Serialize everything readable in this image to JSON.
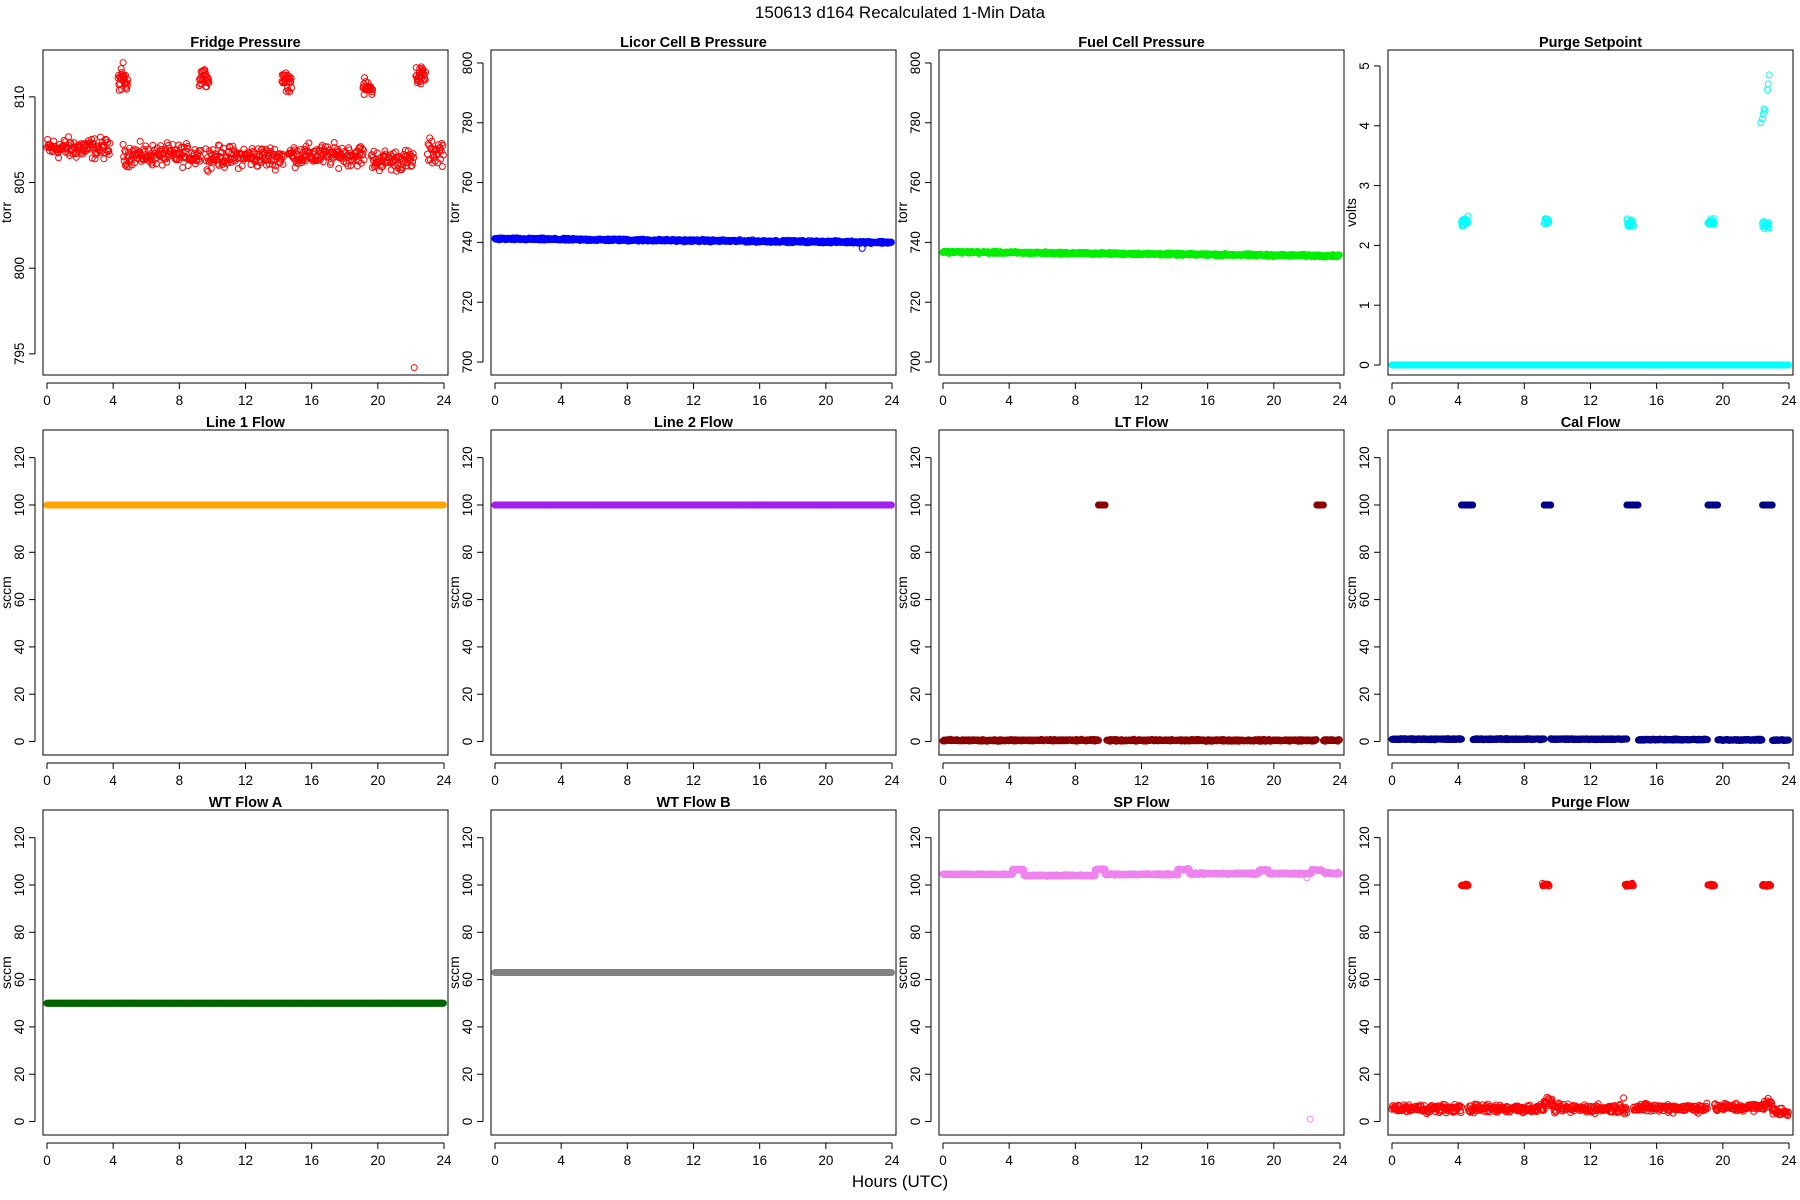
{
  "header": {
    "title": "150613   d164   Recalculated 1-Min Data",
    "xlabel": "Hours (UTC)"
  },
  "chart_data": [
    {
      "type": "scatter",
      "title": "Fridge Pressure",
      "ylabel": "torr",
      "color": "#ff0000",
      "xlim": [
        0,
        24
      ],
      "ylim": [
        794,
        812.5
      ],
      "xticks": [
        0,
        4,
        8,
        12,
        16,
        20,
        24
      ],
      "yticks": [
        795,
        800,
        805,
        810
      ],
      "segments": [
        {
          "x": [
            0,
            3.8
          ],
          "y": 807.0,
          "spread": 0.5
        },
        {
          "x": [
            4.6,
            9.3
          ],
          "y": 806.6,
          "spread": 0.5
        },
        {
          "x": [
            9.6,
            14.3
          ],
          "y": 806.5,
          "spread": 0.5
        },
        {
          "x": [
            14.6,
            19.2
          ],
          "y": 806.6,
          "spread": 0.5
        },
        {
          "x": [
            19.6,
            22.2
          ],
          "y": 806.3,
          "spread": 0.5
        },
        {
          "x": [
            23.0,
            24
          ],
          "y": 806.8,
          "spread": 0.6
        }
      ],
      "clusters": [
        {
          "x": [
            4.3,
            4.9
          ],
          "y": 811.0,
          "spread": 0.5
        },
        {
          "x": [
            9.2,
            9.8
          ],
          "y": 811.1,
          "spread": 0.5
        },
        {
          "x": [
            14.2,
            14.8
          ],
          "y": 810.9,
          "spread": 0.4
        },
        {
          "x": [
            19.1,
            19.7
          ],
          "y": 810.5,
          "spread": 0.4
        },
        {
          "x": [
            22.3,
            22.9
          ],
          "y": 811.2,
          "spread": 0.5
        }
      ],
      "outliers": [
        {
          "x": 22.2,
          "y": 794.2
        },
        {
          "x": 4.6,
          "y": 812.0
        }
      ]
    },
    {
      "type": "scatter",
      "title": "Licor Cell B Pressure",
      "ylabel": "torr",
      "color": "#0000ff",
      "xlim": [
        0,
        24
      ],
      "ylim": [
        697,
        803
      ],
      "xticks": [
        0,
        4,
        8,
        12,
        16,
        20,
        24
      ],
      "yticks": [
        700,
        720,
        740,
        760,
        780,
        800
      ],
      "segments": [
        {
          "x": [
            0,
            24
          ],
          "y": [
            741.2,
            740.0
          ],
          "spread": 0.3
        }
      ],
      "clusters": [],
      "outliers": [
        {
          "x": 22.2,
          "y": 738.0
        }
      ]
    },
    {
      "type": "scatter",
      "title": "Fuel Cell Pressure",
      "ylabel": "torr",
      "color": "#00ee00",
      "xlim": [
        0,
        24
      ],
      "ylim": [
        697,
        803
      ],
      "xticks": [
        0,
        4,
        8,
        12,
        16,
        20,
        24
      ],
      "yticks": [
        700,
        720,
        740,
        760,
        780,
        800
      ],
      "segments": [
        {
          "x": [
            0,
            24
          ],
          "y": [
            736.8,
            735.5
          ],
          "spread": 0.3
        }
      ],
      "clusters": [],
      "outliers": []
    },
    {
      "type": "scatter",
      "title": "Purge Setpoint",
      "ylabel": "volts",
      "color": "#00ffff",
      "xlim": [
        0,
        24
      ],
      "ylim": [
        -0.1,
        5.2
      ],
      "xticks": [
        0,
        4,
        8,
        12,
        16,
        20,
        24
      ],
      "yticks": [
        0,
        1,
        2,
        3,
        4,
        5
      ],
      "segments": [
        {
          "x": [
            0,
            24
          ],
          "y": 0,
          "spread": 0
        }
      ],
      "clusters": [
        {
          "x": [
            4.2,
            4.6
          ],
          "y": 2.4,
          "spread": 0.06
        },
        {
          "x": [
            9.2,
            9.5
          ],
          "y": 2.4,
          "spread": 0.05
        },
        {
          "x": [
            14.2,
            14.6
          ],
          "y": 2.38,
          "spread": 0.06
        },
        {
          "x": [
            19.1,
            19.5
          ],
          "y": 2.4,
          "spread": 0.05
        },
        {
          "x": [
            22.4,
            22.8
          ],
          "y": 2.35,
          "spread": 0.06
        }
      ],
      "outliers": [
        {
          "x": 22.3,
          "y": 4.05
        },
        {
          "x": 22.4,
          "y": 4.12
        },
        {
          "x": 22.45,
          "y": 4.2
        },
        {
          "x": 22.5,
          "y": 4.28
        },
        {
          "x": 22.55,
          "y": 4.25
        },
        {
          "x": 22.7,
          "y": 4.6
        },
        {
          "x": 22.75,
          "y": 4.7
        },
        {
          "x": 22.8,
          "y": 4.85
        }
      ]
    },
    {
      "type": "scatter",
      "title": "Line 1 Flow",
      "ylabel": "sccm",
      "color": "#ffa500",
      "xlim": [
        0,
        24
      ],
      "ylim": [
        -4,
        130
      ],
      "xticks": [
        0,
        4,
        8,
        12,
        16,
        20,
        24
      ],
      "yticks": [
        0,
        20,
        40,
        60,
        80,
        100,
        120
      ],
      "segments": [
        {
          "x": [
            0,
            24
          ],
          "y": 100,
          "spread": 0
        }
      ],
      "clusters": [],
      "outliers": []
    },
    {
      "type": "scatter",
      "title": "Line 2 Flow",
      "ylabel": "sccm",
      "color": "#a020f0",
      "xlim": [
        0,
        24
      ],
      "ylim": [
        -4,
        130
      ],
      "xticks": [
        0,
        4,
        8,
        12,
        16,
        20,
        24
      ],
      "yticks": [
        0,
        20,
        40,
        60,
        80,
        100,
        120
      ],
      "segments": [
        {
          "x": [
            0,
            24
          ],
          "y": 100,
          "spread": 0
        }
      ],
      "clusters": [],
      "outliers": []
    },
    {
      "type": "scatter",
      "title": "LT Flow",
      "ylabel": "sccm",
      "color": "#8b0000",
      "xlim": [
        0,
        24
      ],
      "ylim": [
        -4,
        130
      ],
      "xticks": [
        0,
        4,
        8,
        12,
        16,
        20,
        24
      ],
      "yticks": [
        0,
        20,
        40,
        60,
        80,
        100,
        120
      ],
      "segments": [
        {
          "x": [
            0,
            9.4
          ],
          "y": 0.5,
          "spread": 0.3
        },
        {
          "x": [
            9.9,
            22.6
          ],
          "y": 0.5,
          "spread": 0.3
        },
        {
          "x": [
            23.0,
            24
          ],
          "y": 0.5,
          "spread": 0.3
        }
      ],
      "clusters": [
        {
          "x": [
            9.4,
            9.8
          ],
          "y": 100,
          "spread": 0
        },
        {
          "x": [
            22.6,
            23.0
          ],
          "y": 100,
          "spread": 0
        }
      ],
      "outliers": []
    },
    {
      "type": "scatter",
      "title": "Cal Flow",
      "ylabel": "sccm",
      "color": "#00008b",
      "xlim": [
        0,
        24
      ],
      "ylim": [
        -4,
        130
      ],
      "xticks": [
        0,
        4,
        8,
        12,
        16,
        20,
        24
      ],
      "yticks": [
        0,
        20,
        40,
        60,
        80,
        100,
        120
      ],
      "segments": [
        {
          "x": [
            0,
            4.2
          ],
          "y": 1.0,
          "spread": 0.2
        },
        {
          "x": [
            4.9,
            9.2
          ],
          "y": 1.0,
          "spread": 0.2
        },
        {
          "x": [
            9.6,
            14.2
          ],
          "y": 1.0,
          "spread": 0.2
        },
        {
          "x": [
            14.9,
            19.1
          ],
          "y": 0.8,
          "spread": 0.2
        },
        {
          "x": [
            19.7,
            22.4
          ],
          "y": 0.7,
          "spread": 0.2
        },
        {
          "x": [
            23.0,
            24
          ],
          "y": 0.6,
          "spread": 0.2
        }
      ],
      "clusters": [
        {
          "x": [
            4.2,
            4.9
          ],
          "y": 100,
          "spread": 0
        },
        {
          "x": [
            9.2,
            9.6
          ],
          "y": 100,
          "spread": 0
        },
        {
          "x": [
            14.2,
            14.9
          ],
          "y": 100,
          "spread": 0
        },
        {
          "x": [
            19.1,
            19.7
          ],
          "y": 100,
          "spread": 0
        },
        {
          "x": [
            22.4,
            23.0
          ],
          "y": 100,
          "spread": 0
        }
      ],
      "outliers": []
    },
    {
      "type": "scatter",
      "title": "WT Flow A",
      "ylabel": "sccm",
      "color": "#006400",
      "xlim": [
        0,
        24
      ],
      "ylim": [
        -4,
        130
      ],
      "xticks": [
        0,
        4,
        8,
        12,
        16,
        20,
        24
      ],
      "yticks": [
        0,
        20,
        40,
        60,
        80,
        100,
        120
      ],
      "segments": [
        {
          "x": [
            0,
            24
          ],
          "y": 50,
          "spread": 0
        }
      ],
      "clusters": [],
      "outliers": []
    },
    {
      "type": "scatter",
      "title": "WT Flow B",
      "ylabel": "sccm",
      "color": "#808080",
      "xlim": [
        0,
        24
      ],
      "ylim": [
        -4,
        130
      ],
      "xticks": [
        0,
        4,
        8,
        12,
        16,
        20,
        24
      ],
      "yticks": [
        0,
        20,
        40,
        60,
        80,
        100,
        120
      ],
      "segments": [
        {
          "x": [
            0,
            24
          ],
          "y": 63,
          "spread": 0
        }
      ],
      "clusters": [],
      "outliers": []
    },
    {
      "type": "scatter",
      "title": "SP Flow",
      "ylabel": "sccm",
      "color": "#ee82ee",
      "xlim": [
        0,
        24
      ],
      "ylim": [
        -4,
        130
      ],
      "xticks": [
        0,
        4,
        8,
        12,
        16,
        20,
        24
      ],
      "yticks": [
        0,
        20,
        40,
        60,
        80,
        100,
        120
      ],
      "segments": [
        {
          "x": [
            0,
            4.2
          ],
          "y": 104.5,
          "spread": 0.2
        },
        {
          "x": [
            4.2,
            4.9
          ],
          "y": 106.5,
          "spread": 0.3
        },
        {
          "x": [
            4.9,
            9.2
          ],
          "y": 104.0,
          "spread": 0.3
        },
        {
          "x": [
            9.2,
            9.8
          ],
          "y": 106.5,
          "spread": 0.3
        },
        {
          "x": [
            9.8,
            14.2
          ],
          "y": 104.5,
          "spread": 0.3
        },
        {
          "x": [
            14.2,
            14.9
          ],
          "y": 106.5,
          "spread": 0.3
        },
        {
          "x": [
            14.9,
            19.1
          ],
          "y": 104.8,
          "spread": 0.3
        },
        {
          "x": [
            19.1,
            19.7
          ],
          "y": 106.2,
          "spread": 0.3
        },
        {
          "x": [
            19.7,
            22.3
          ],
          "y": 104.8,
          "spread": 0.3
        },
        {
          "x": [
            22.3,
            23.0
          ],
          "y": 106.3,
          "spread": 0.3
        },
        {
          "x": [
            23.0,
            24
          ],
          "y": 105.0,
          "spread": 0.3
        }
      ],
      "clusters": [],
      "outliers": [
        {
          "x": 22.2,
          "y": 1.0
        },
        {
          "x": 22.0,
          "y": 103.0
        }
      ]
    },
    {
      "type": "scatter",
      "title": "Purge Flow",
      "ylabel": "sccm",
      "color": "#ff0000",
      "xlim": [
        0,
        24
      ],
      "ylim": [
        -4,
        130
      ],
      "xticks": [
        0,
        4,
        8,
        12,
        16,
        20,
        24
      ],
      "yticks": [
        0,
        20,
        40,
        60,
        80,
        100,
        120
      ],
      "segments": [
        {
          "x": [
            0,
            4.2
          ],
          "y": 5.5,
          "spread": 1.5
        },
        {
          "x": [
            4.6,
            9.2
          ],
          "y": 5.5,
          "spread": 1.5
        },
        {
          "x": [
            9.2,
            9.7
          ],
          "y": 8.5,
          "spread": 1.5
        },
        {
          "x": [
            9.7,
            14.2
          ],
          "y": 5.5,
          "spread": 1.5
        },
        {
          "x": [
            14.6,
            19.1
          ],
          "y": 5.8,
          "spread": 1.5
        },
        {
          "x": [
            19.5,
            22.5
          ],
          "y": 6.0,
          "spread": 1.5
        },
        {
          "x": [
            22.5,
            23.0
          ],
          "y": 8.0,
          "spread": 1.5
        },
        {
          "x": [
            23.0,
            24
          ],
          "y": 4.0,
          "spread": 1.5
        }
      ],
      "clusters": [
        {
          "x": [
            4.2,
            4.6
          ],
          "y": 100,
          "spread": 0.4
        },
        {
          "x": [
            9.1,
            9.5
          ],
          "y": 100,
          "spread": 0.4
        },
        {
          "x": [
            14.1,
            14.6
          ],
          "y": 100,
          "spread": 0.5
        },
        {
          "x": [
            19.1,
            19.5
          ],
          "y": 100,
          "spread": 0.4
        },
        {
          "x": [
            22.4,
            22.9
          ],
          "y": 100,
          "spread": 0.4
        }
      ],
      "outliers": [
        {
          "x": 14.0,
          "y": 10.0
        }
      ]
    }
  ]
}
